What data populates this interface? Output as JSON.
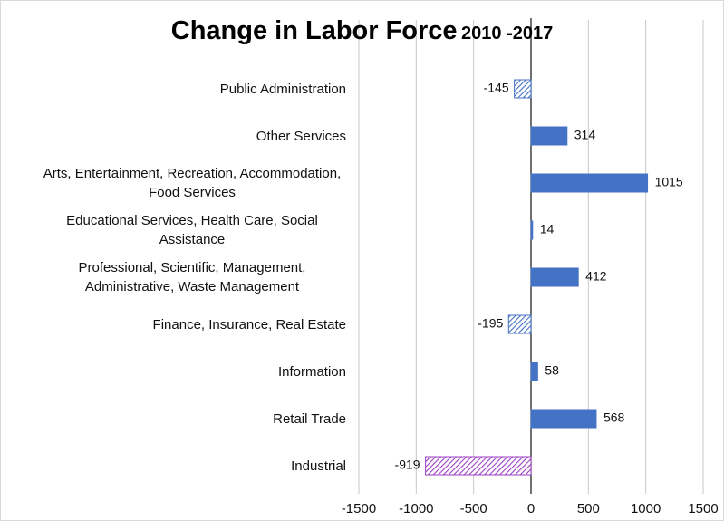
{
  "chart_data": {
    "type": "barh",
    "title": "Change in Labor Force",
    "subtitle": "2010 -2017",
    "categories": [
      "Public Administration",
      "Other Services",
      "Arts, Entertainment, Recreation, Accommodation, Food Services",
      "Educational Services, Health Care, Social Assistance",
      "Professional, Scientific, Management, Administrative, Waste Management",
      "Finance, Insurance, Real Estate",
      "Information",
      "Retail Trade",
      "Industrial"
    ],
    "values": [
      -145,
      314,
      1015,
      14,
      412,
      -195,
      58,
      568,
      -919
    ],
    "colors": [
      "#4472c4",
      "#4472c4",
      "#4472c4",
      "#4472c4",
      "#4472c4",
      "#4472c4",
      "#4472c4",
      "#4472c4",
      "#9b3fc4"
    ],
    "hatched": [
      true,
      false,
      false,
      false,
      false,
      true,
      false,
      false,
      true
    ],
    "xlim": [
      -1500,
      1500
    ],
    "xticks": [
      -1500,
      -1000,
      -500,
      0,
      500,
      1000,
      1500
    ],
    "grid": true
  }
}
